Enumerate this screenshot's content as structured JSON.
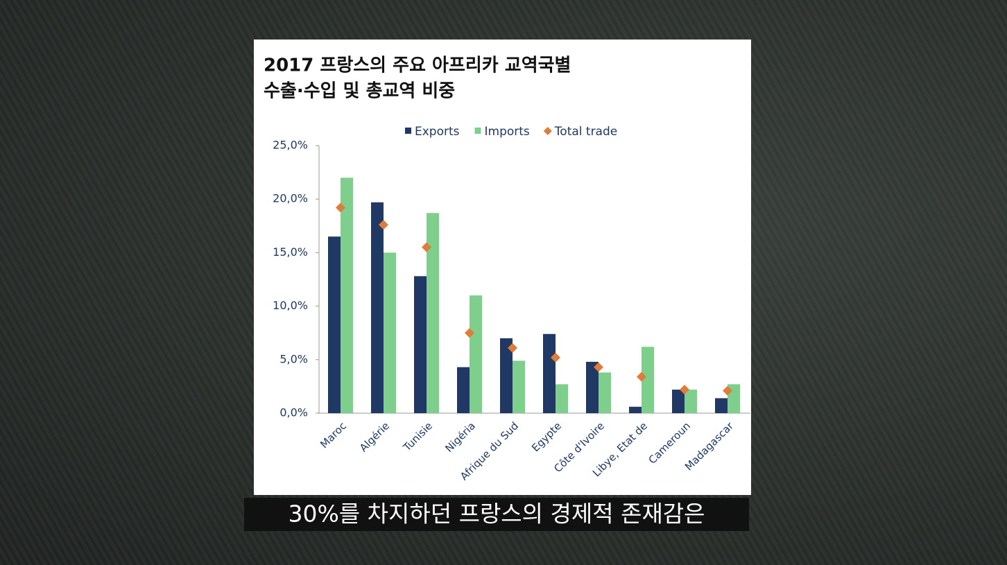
{
  "chart_data": {
    "type": "bar",
    "title": [
      "2017 프랑스의 주요 아프리카 교역국별",
      "수출·수입 및 총교역 비중"
    ],
    "categories": [
      "Maroc",
      "Algérie",
      "Tunisie",
      "Nigéria",
      "Afrique du Sud",
      "Egypte",
      "Côte d'Ivoire",
      "Libye, Etat de",
      "Cameroun",
      "Madagascar"
    ],
    "series": [
      {
        "name": "Exports",
        "type": "bar",
        "color": "#1f3864",
        "values": [
          16.5,
          19.7,
          12.8,
          4.3,
          7.0,
          7.4,
          4.8,
          0.6,
          2.2,
          1.4
        ]
      },
      {
        "name": "Imports",
        "type": "bar",
        "color": "#7fcf8c",
        "values": [
          22.0,
          15.0,
          18.7,
          11.0,
          4.9,
          2.7,
          3.8,
          6.2,
          2.2,
          2.7
        ]
      },
      {
        "name": "Total trade",
        "type": "scatter",
        "color": "#e07b39",
        "values": [
          19.2,
          17.6,
          15.5,
          7.5,
          6.1,
          5.2,
          4.3,
          3.4,
          2.2,
          2.1
        ]
      }
    ],
    "ylim": [
      0,
      25
    ],
    "yticks": [
      {
        "value": 0,
        "label": "0,0%"
      },
      {
        "value": 5,
        "label": "5,0%"
      },
      {
        "value": 10,
        "label": "10,0%"
      },
      {
        "value": 15,
        "label": "15,0%"
      },
      {
        "value": 20,
        "label": "20,0%"
      },
      {
        "value": 25,
        "label": "25,0%"
      }
    ],
    "legend": "top",
    "grid": false
  },
  "caption": "30%를 차지하던 프랑스의 경제적 존재감은"
}
